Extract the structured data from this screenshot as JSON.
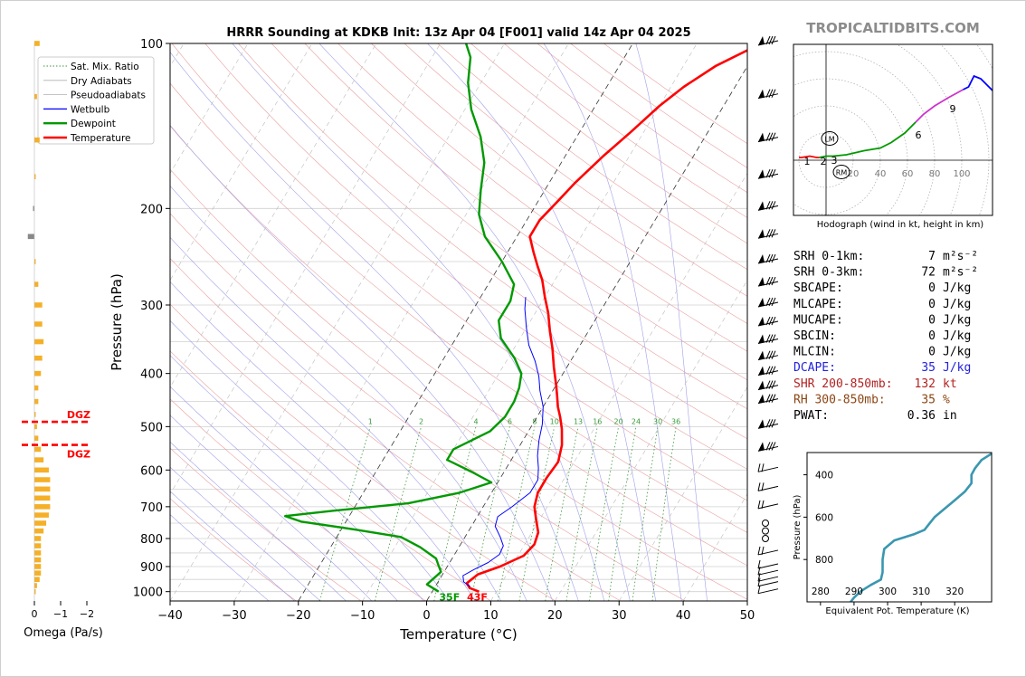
{
  "header": {
    "title": "HRRR Sounding at KDKB Init: 13z Apr 04 [F001] valid 14z Apr 04 2025",
    "brand": "TROPICALTIDBITS.COM"
  },
  "colors": {
    "temperature": "#ff0000",
    "dewpoint": "#009900",
    "wetbulb": "#0000ff",
    "dry_adiabat": "#e9a0a0",
    "moist_adiabat": "#a0a0e9",
    "mixing_ratio": "#3a9a3a",
    "omega": "#f5b027",
    "theta_e": "#3a97b0",
    "hodo_low": "#ff0000",
    "hodo_mid": "#009900",
    "hodo_upper": "#cc33cc",
    "hodo_top": "#0000ff"
  },
  "chart_data": [
    {
      "type": "line",
      "name": "skewt",
      "xlabel": "Temperature (°C)",
      "ylabel": "Pressure (hPa)",
      "x_range": [
        -40,
        50
      ],
      "y_range": [
        1040,
        100
      ],
      "y_log": true,
      "x_ticks": [
        -40,
        -30,
        -20,
        -10,
        0,
        10,
        20,
        30,
        40,
        50
      ],
      "x_tick_labels": [
        "−40",
        "−30",
        "−20",
        "−10",
        "0",
        "10",
        "20",
        "30",
        "40",
        "50"
      ],
      "y_ticks": [
        1000,
        900,
        800,
        700,
        600,
        500,
        400,
        300,
        200,
        100
      ],
      "legend": {
        "position": "top-left",
        "entries": [
          "Sat. Mix. Ratio",
          "Dry Adiabats",
          "Pseudoadiabats",
          "Wetbulb",
          "Dewpoint",
          "Temperature"
        ]
      },
      "mixing_ratio_labels": [
        "1",
        "2",
        "4",
        "6",
        "8",
        "10",
        "13",
        "16",
        "20",
        "24",
        "30",
        "36"
      ],
      "mixing_ratio_values": [
        1,
        2,
        4,
        6,
        8,
        10,
        13,
        16,
        20,
        24,
        30,
        36
      ],
      "surface_labels": {
        "dewpoint": "35F",
        "temperature": "43F"
      },
      "series": [
        {
          "name": "Temperature",
          "points": [
            [
              7.3,
              1000
            ],
            [
              5.5,
              985
            ],
            [
              4.6,
              965
            ],
            [
              5.5,
              930
            ],
            [
              8.2,
              900
            ],
            [
              10.9,
              860
            ],
            [
              11.5,
              820
            ],
            [
              11,
              780
            ],
            [
              9.5,
              740
            ],
            [
              8,
              700
            ],
            [
              7.2,
              660
            ],
            [
              7.2,
              620
            ],
            [
              7.5,
              580
            ],
            [
              6.5,
              540
            ],
            [
              5,
              505
            ],
            [
              3.6,
              480
            ],
            [
              2.3,
              460
            ],
            [
              1.2,
              440
            ],
            [
              0,
              420
            ],
            [
              -2,
              390
            ],
            [
              -4,
              360
            ],
            [
              -6,
              335
            ],
            [
              -8,
              310
            ],
            [
              -10,
              290
            ],
            [
              -12,
              270
            ],
            [
              -14,
              255
            ],
            [
              -16,
              240
            ],
            [
              -18,
              225
            ],
            [
              -18,
              210
            ],
            [
              -17,
              195
            ],
            [
              -16,
              180
            ],
            [
              -14,
              160
            ],
            [
              -12,
              145
            ],
            [
              -10,
              130
            ],
            [
              -8,
              120
            ],
            [
              -5,
              110
            ],
            [
              0,
              100
            ]
          ]
        },
        {
          "name": "Dewpoint",
          "points": [
            [
              1,
              1000
            ],
            [
              -1.5,
              970
            ],
            [
              -1,
              945
            ],
            [
              -0.5,
              920
            ],
            [
              -1.5,
              895
            ],
            [
              -2.5,
              870
            ],
            [
              -6,
              830
            ],
            [
              -10,
              795
            ],
            [
              -18,
              770
            ],
            [
              -27,
              745
            ],
            [
              -30,
              728
            ],
            [
              -23,
              712
            ],
            [
              -12,
              690
            ],
            [
              -5,
              660
            ],
            [
              -1,
              632
            ],
            [
              -5,
              605
            ],
            [
              -10,
              575
            ],
            [
              -10,
              550
            ],
            [
              -6,
              510
            ],
            [
              -5,
              480
            ],
            [
              -5,
              450
            ],
            [
              -5.5,
              425
            ],
            [
              -6.5,
              400
            ],
            [
              -9,
              375
            ],
            [
              -13,
              345
            ],
            [
              -15,
              320
            ],
            [
              -15,
              295
            ],
            [
              -16,
              275
            ],
            [
              -20,
              250
            ],
            [
              -25,
              225
            ],
            [
              -28,
              205
            ],
            [
              -30,
              185
            ],
            [
              -32,
              165
            ],
            [
              -35,
              148
            ],
            [
              -39,
              132
            ],
            [
              -42,
              118
            ],
            [
              -44,
              106
            ],
            [
              -46,
              100
            ]
          ]
        },
        {
          "name": "Wetbulb",
          "points": [
            [
              5.5,
              980
            ],
            [
              4,
              960
            ],
            [
              3.3,
              935
            ],
            [
              4.5,
              910
            ],
            [
              6,
              885
            ],
            [
              7,
              855
            ],
            [
              6.8,
              825
            ],
            [
              5.5,
              795
            ],
            [
              3.7,
              760
            ],
            [
              3.2,
              730
            ],
            [
              4.5,
              700
            ],
            [
              6,
              660
            ],
            [
              6,
              625
            ],
            [
              5,
              595
            ],
            [
              3.7,
              565
            ],
            [
              2.5,
              530
            ],
            [
              1.5,
              495
            ],
            [
              0,
              460
            ],
            [
              -2,
              430
            ],
            [
              -3.5,
              405
            ],
            [
              -5.5,
              380
            ],
            [
              -8,
              355
            ],
            [
              -10,
              330
            ],
            [
              -12,
              305
            ],
            [
              -13,
              290
            ]
          ]
        }
      ],
      "wind_barb_pressures": [
        1000,
        970,
        950,
        925,
        900,
        850,
        800,
        775,
        750,
        700,
        650,
        600,
        550,
        500,
        450,
        425,
        400,
        375,
        350,
        325,
        300,
        275,
        250,
        225,
        200,
        175,
        150,
        125,
        100
      ]
    },
    {
      "type": "bar",
      "name": "omega",
      "xlabel": "Omega (Pa/s)",
      "x_ticks": [
        "0",
        "−1",
        "−2"
      ],
      "dgz_label": "DGZ",
      "dgz_levels": [
        490,
        540
      ],
      "levels": [
        1000,
        975,
        950,
        925,
        900,
        875,
        850,
        825,
        800,
        775,
        750,
        725,
        700,
        675,
        650,
        625,
        600,
        575,
        550,
        525,
        500,
        475,
        450,
        425,
        400,
        375,
        350,
        325,
        300,
        275,
        250,
        225,
        200,
        175,
        150,
        125,
        100
      ],
      "values": [
        -0.1,
        -0.2,
        -0.4,
        -0.5,
        -0.5,
        -0.5,
        -0.5,
        -0.5,
        -0.5,
        -0.7,
        -0.9,
        -1.1,
        -1.2,
        -1.2,
        -1.2,
        -1.2,
        -1.1,
        -0.7,
        -0.5,
        -0.3,
        -0.2,
        -0.1,
        -0.3,
        -0.3,
        -0.5,
        -0.6,
        -0.7,
        -0.6,
        -0.6,
        -0.3,
        0.0,
        0.5,
        0.1,
        0.0,
        -0.4,
        -0.2,
        -0.4
      ]
    },
    {
      "type": "line",
      "name": "hodograph",
      "xlabel": "Hodograph (wind in kt, height in km)",
      "ring_labels": [
        "20",
        "40",
        "60",
        "80",
        "100"
      ],
      "height_labels": [
        "1",
        "2",
        "3",
        "6",
        "9"
      ],
      "storm_motion_labels": [
        "LM",
        "RM"
      ],
      "points": [
        [
          -20,
          2
        ],
        [
          -18,
          2
        ],
        [
          -12,
          3
        ],
        [
          -7,
          2
        ],
        [
          -5,
          2
        ],
        [
          0,
          3
        ],
        [
          5,
          3
        ],
        [
          15,
          4
        ],
        [
          28,
          7
        ],
        [
          40,
          9
        ],
        [
          48,
          13
        ],
        [
          58,
          20
        ],
        [
          66,
          28
        ],
        [
          72,
          34
        ],
        [
          80,
          40
        ],
        [
          90,
          46
        ],
        [
          101,
          52
        ],
        [
          105,
          54
        ],
        [
          107,
          58
        ],
        [
          109,
          62
        ],
        [
          114,
          60
        ],
        [
          120,
          54
        ],
        [
          129,
          45
        ]
      ]
    },
    {
      "type": "line",
      "name": "theta_e",
      "xlabel": "Equivalent Pot. Temperature (K)",
      "ylabel": "Pressure (hPa)",
      "x_ticks": [
        280,
        290,
        300,
        310,
        320
      ],
      "y_ticks": [
        400,
        600,
        800
      ],
      "points": [
        [
          289,
          1000
        ],
        [
          290,
          980
        ],
        [
          292,
          950
        ],
        [
          295,
          920
        ],
        [
          298,
          895
        ],
        [
          298.5,
          860
        ],
        [
          298.5,
          800
        ],
        [
          299,
          750
        ],
        [
          302,
          710
        ],
        [
          308,
          680
        ],
        [
          311,
          660
        ],
        [
          312,
          640
        ],
        [
          314,
          600
        ],
        [
          317,
          560
        ],
        [
          320,
          520
        ],
        [
          323,
          480
        ],
        [
          325,
          440
        ],
        [
          325,
          400
        ],
        [
          326,
          370
        ],
        [
          328,
          330
        ],
        [
          331,
          300
        ]
      ]
    }
  ],
  "indices": [
    {
      "label": "SRH 0-1km:",
      "value": "7",
      "unit": "m²s⁻²",
      "color": "#000000"
    },
    {
      "label": "SRH 0-3km:",
      "value": "72",
      "unit": "m²s⁻²",
      "color": "#000000"
    },
    {
      "label": "SBCAPE:",
      "value": "0",
      "unit": "J/kg",
      "color": "#000000"
    },
    {
      "label": "MLCAPE:",
      "value": "0",
      "unit": "J/kg",
      "color": "#000000"
    },
    {
      "label": "MUCAPE:",
      "value": "0",
      "unit": "J/kg",
      "color": "#000000"
    },
    {
      "label": "SBCIN:",
      "value": "0",
      "unit": "J/kg",
      "color": "#000000"
    },
    {
      "label": "MLCIN:",
      "value": "0",
      "unit": "J/kg",
      "color": "#000000"
    },
    {
      "label": "DCAPE:",
      "value": "35",
      "unit": "J/kg",
      "color": "#2222dd"
    },
    {
      "label": "SHR 200-850mb:",
      "value": "132",
      "unit": "kt",
      "color": "#b22222"
    },
    {
      "label": "RH 300-850mb:",
      "value": "35",
      "unit": "%",
      "color": "#8b4513"
    },
    {
      "label": "PWAT:",
      "value": "0.36",
      "unit": "in",
      "color": "#000000"
    }
  ]
}
